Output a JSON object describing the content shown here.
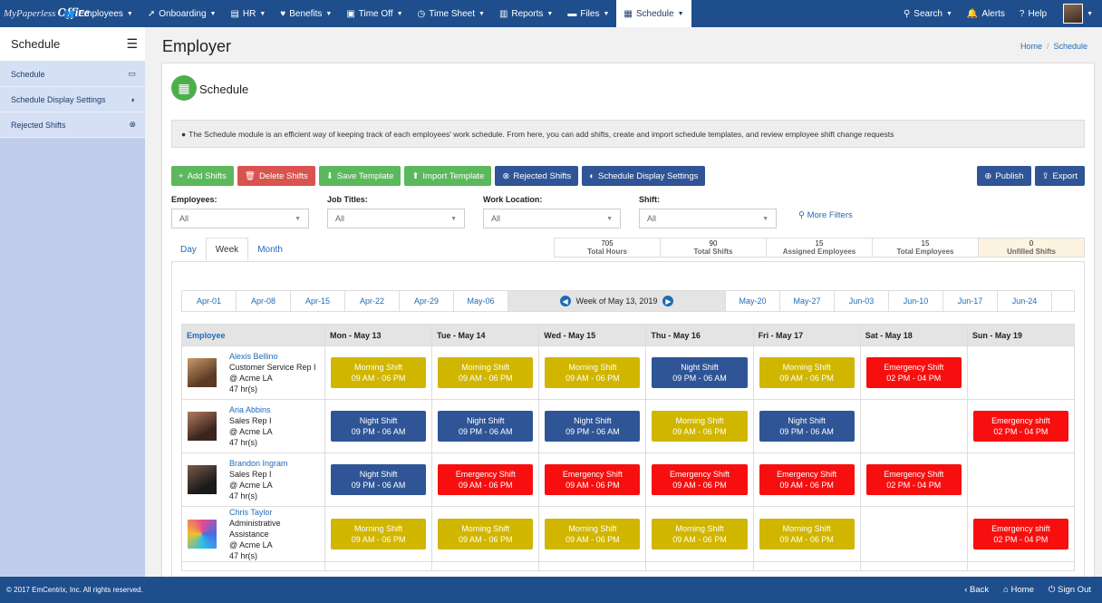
{
  "brand": {
    "logo_text": "MyPaperless",
    "logo_suffix": "Office"
  },
  "nav": {
    "items": [
      "Employees",
      "Onboarding",
      "HR",
      "Benefits",
      "Time Off",
      "Time Sheet",
      "Reports",
      "Files",
      "Schedule"
    ],
    "active": "Schedule",
    "right": [
      "Search",
      "Alerts",
      "Help"
    ]
  },
  "sidebar": {
    "title": "Schedule",
    "items": [
      {
        "label": "Schedule",
        "icon": "calendar-icon"
      },
      {
        "label": "Schedule Display Settings",
        "icon": "contrast-icon"
      },
      {
        "label": "Rejected Shifts",
        "icon": "circle-x-icon"
      }
    ]
  },
  "page": {
    "title": "Employer",
    "breadcrumb": [
      "Home",
      "Schedule"
    ],
    "module_title": "Schedule",
    "info": "The Schedule module is an efficient way of keeping track of each employees' work schedule. From here, you can add shifts, create and import schedule templates, and review employee shift change requests"
  },
  "buttons": {
    "add": "Add Shifts",
    "delete": "Delete Shifts",
    "save_template": "Save Template",
    "import_template": "Import Template",
    "rejected": "Rejected Shifts",
    "display_settings": "Schedule Display Settings",
    "publish": "Publish",
    "export": "Export"
  },
  "filters": [
    {
      "label": "Employees:",
      "value": "All"
    },
    {
      "label": "Job Titles:",
      "value": "All"
    },
    {
      "label": "Work Location:",
      "value": "All"
    },
    {
      "label": "Shift:",
      "value": "All"
    }
  ],
  "more_filters": "More Filters",
  "tabs": [
    "Day",
    "Week",
    "Month"
  ],
  "active_tab": "Week",
  "stats": [
    {
      "value": "705",
      "label": "Total Hours"
    },
    {
      "value": "90",
      "label": "Total Shifts"
    },
    {
      "value": "15",
      "label": "Assigned Employees"
    },
    {
      "value": "15",
      "label": "Total Employees"
    },
    {
      "value": "0",
      "label": "Unfilled Shifts"
    }
  ],
  "weeks_before": [
    "Apr-01",
    "Apr-08",
    "Apr-15",
    "Apr-22",
    "Apr-29",
    "May-06"
  ],
  "current_week": "Week of May 13, 2019",
  "weeks_after": [
    "May-20",
    "May-27",
    "Jun-03",
    "Jun-10",
    "Jun-17",
    "Jun-24"
  ],
  "grid_headers": [
    "Employee",
    "Mon - May 13",
    "Tue - May 14",
    "Wed - May 15",
    "Thu - May 16",
    "Fri - May 17",
    "Sat - May 18",
    "Sun - May 19"
  ],
  "employees": [
    {
      "name": "Alexis Bellino",
      "title": "Customer Service Rep I",
      "location": "@ Acme LA",
      "hours": "47 hr(s)",
      "shifts": [
        [
          "Morning Shift",
          "09 AM - 06 PM"
        ],
        [
          "Morning Shift",
          "09 AM - 06 PM"
        ],
        [
          "Morning Shift",
          "09 AM - 06 PM"
        ],
        [
          "Night Shift",
          "09 PM - 06 AM"
        ],
        [
          "Morning Shift",
          "09 AM - 06 PM"
        ],
        [
          "Emergency Shift",
          "02 PM - 04 PM"
        ],
        null
      ]
    },
    {
      "name": "Aria Abbins",
      "title": "Sales Rep I",
      "location": "@ Acme LA",
      "hours": "47 hr(s)",
      "shifts": [
        [
          "Night Shift",
          "09 PM - 06 AM"
        ],
        [
          "Night Shift",
          "09 PM - 06 AM"
        ],
        [
          "Night Shift",
          "09 PM - 06 AM"
        ],
        [
          "Morning Shift",
          "09 AM - 06 PM"
        ],
        [
          "Night Shift",
          "09 PM - 06 AM"
        ],
        null,
        [
          "Emergency shift",
          "02 PM - 04 PM"
        ]
      ]
    },
    {
      "name": "Brandon Ingram",
      "title": "Sales Rep I",
      "location": "@ Acme LA",
      "hours": "47 hr(s)",
      "shifts": [
        [
          "Night Shift",
          "09 PM - 06 AM"
        ],
        [
          "Emergency Shift",
          "09 AM - 06 PM"
        ],
        [
          "Emergency Shift",
          "09 AM - 06 PM"
        ],
        [
          "Emergency Shift",
          "09 AM - 06 PM"
        ],
        [
          "Emergency Shift",
          "09 AM - 06 PM"
        ],
        [
          "Emergency Shift",
          "02 PM - 04 PM"
        ],
        null
      ]
    },
    {
      "name": "Chris Taylor",
      "title": "Administrative Assistance",
      "location": "@ Acme LA",
      "hours": "47 hr(s)",
      "shifts": [
        [
          "Morning Shift",
          "09 AM - 06 PM"
        ],
        [
          "Morning Shift",
          "09 AM - 06 PM"
        ],
        [
          "Morning Shift",
          "09 AM - 06 PM"
        ],
        [
          "Morning Shift",
          "09 AM - 06 PM"
        ],
        [
          "Morning Shift",
          "09 AM - 06 PM"
        ],
        null,
        [
          "Emergency shift",
          "02 PM - 04 PM"
        ]
      ]
    }
  ],
  "shift_colors": {
    "morning": "#d1b600",
    "night": "#2f5597",
    "emergency": "#f70f0f"
  },
  "footer": {
    "copyright": "© 2017 EmCentrix, Inc. All rights reserved.",
    "links": [
      "Back",
      "Home",
      "Sign Out"
    ]
  }
}
